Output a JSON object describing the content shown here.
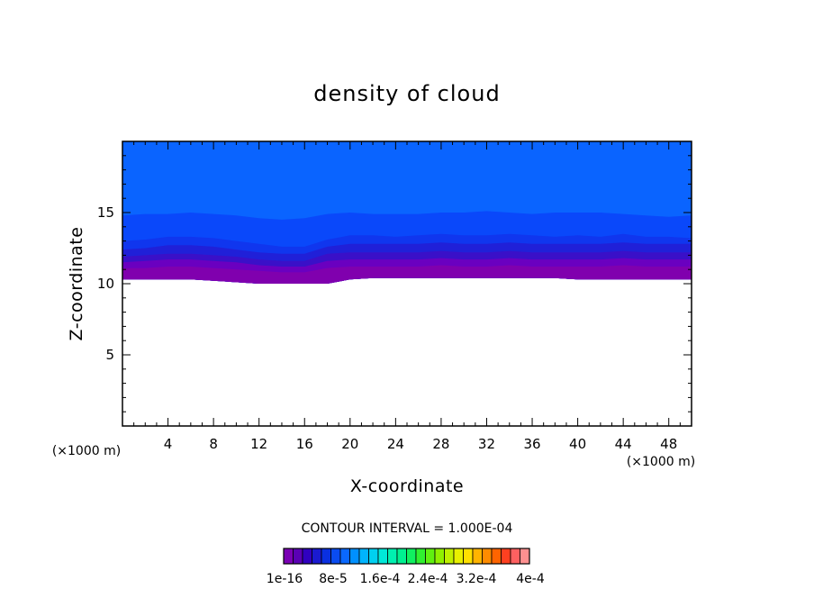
{
  "chart_data": {
    "type": "heatmap",
    "title": "density of cloud",
    "xlabel": "X-coordinate",
    "ylabel": "Z-coordinate",
    "x_unit": "(×1000 m)",
    "z_unit": "(×1000 m)",
    "xlim": [
      0,
      50
    ],
    "ylim": [
      0,
      20
    ],
    "x_ticks": [
      "4",
      "8",
      "12",
      "16",
      "20",
      "24",
      "28",
      "32",
      "36",
      "40",
      "44",
      "48"
    ],
    "y_ticks": [
      "5",
      "10",
      "15"
    ],
    "x_tick_values": [
      4,
      8,
      12,
      16,
      20,
      24,
      28,
      32,
      36,
      40,
      44,
      48
    ],
    "y_tick_values": [
      5,
      10,
      15
    ],
    "contour_interval_text": "CONTOUR INTERVAL = 1.000E-04",
    "contour_interval": 0.0001,
    "colorbar_labels": [
      "1e-16",
      "8e-5",
      "1.6e-4",
      "2.4e-4",
      "3.2e-4",
      "4e-4"
    ],
    "colorbar_levels": 26,
    "colorbar_colors": [
      "#7a00b4",
      "#5a00b4",
      "#3000c0",
      "#1a1ad0",
      "#0a30e0",
      "#0a4cf0",
      "#0a68ff",
      "#0090ff",
      "#00b4ff",
      "#00d0f0",
      "#00e8d8",
      "#00f0b0",
      "#00f090",
      "#10f060",
      "#30f030",
      "#60f010",
      "#90f000",
      "#c0f000",
      "#e8f000",
      "#ffe000",
      "#ffb400",
      "#ff8c00",
      "#ff6400",
      "#ff4020",
      "#ff6060",
      "#ff9090"
    ],
    "cloud_top_z": 20,
    "cloud_base_z": [
      10.3,
      10.3,
      10.3,
      10.3,
      10.2,
      10.1,
      10.0,
      10.0,
      10.0,
      10.0,
      10.3,
      10.4,
      10.4,
      10.4,
      10.4,
      10.4,
      10.4,
      10.4,
      10.4,
      10.4,
      10.3,
      10.3,
      10.3,
      10.3,
      10.3,
      10.3
    ],
    "band_colors": [
      "#8000ae",
      "#6a00c0",
      "#3a10c8",
      "#2020d8",
      "#1036ee",
      "#0a48fa",
      "#0a64ff"
    ],
    "band_tops": [
      [
        11.1,
        11.1,
        11.2,
        11.2,
        11.1,
        11.0,
        10.9,
        10.8,
        10.8,
        11.1,
        11.2,
        11.2,
        11.2,
        11.2,
        11.3,
        11.2,
        11.2,
        11.3,
        11.2,
        11.2,
        11.2,
        11.2,
        11.3,
        11.2,
        11.2,
        11.2
      ],
      [
        11.5,
        11.6,
        11.7,
        11.7,
        11.6,
        11.5,
        11.3,
        11.2,
        11.2,
        11.6,
        11.7,
        11.7,
        11.7,
        11.7,
        11.8,
        11.7,
        11.7,
        11.8,
        11.7,
        11.7,
        11.7,
        11.7,
        11.8,
        11.7,
        11.7,
        11.7
      ],
      [
        11.9,
        12.0,
        12.1,
        12.1,
        12.0,
        11.9,
        11.7,
        11.6,
        11.6,
        12.1,
        12.2,
        12.2,
        12.2,
        12.2,
        12.3,
        12.2,
        12.2,
        12.3,
        12.2,
        12.2,
        12.2,
        12.2,
        12.3,
        12.2,
        12.2,
        12.2
      ],
      [
        12.4,
        12.5,
        12.7,
        12.7,
        12.6,
        12.4,
        12.2,
        12.1,
        12.1,
        12.6,
        12.8,
        12.8,
        12.8,
        12.8,
        12.9,
        12.8,
        12.8,
        12.9,
        12.8,
        12.8,
        12.8,
        12.8,
        12.9,
        12.8,
        12.8,
        12.8
      ],
      [
        13.0,
        13.1,
        13.3,
        13.3,
        13.2,
        13.0,
        12.8,
        12.6,
        12.6,
        13.1,
        13.4,
        13.4,
        13.3,
        13.4,
        13.5,
        13.4,
        13.4,
        13.5,
        13.4,
        13.3,
        13.4,
        13.3,
        13.5,
        13.3,
        13.3,
        13.2
      ],
      [
        14.8,
        14.9,
        14.9,
        15.0,
        14.9,
        14.8,
        14.6,
        14.5,
        14.6,
        14.9,
        15.0,
        14.9,
        14.9,
        14.9,
        15.0,
        15.0,
        15.1,
        15.0,
        14.9,
        15.0,
        15.0,
        15.0,
        14.9,
        14.8,
        14.7,
        14.8
      ],
      [
        20,
        20,
        20,
        20,
        20,
        20,
        20,
        20,
        20,
        20,
        20,
        20,
        20,
        20,
        20,
        20,
        20,
        20,
        20,
        20,
        20,
        20,
        20,
        20,
        20,
        20
      ]
    ]
  }
}
